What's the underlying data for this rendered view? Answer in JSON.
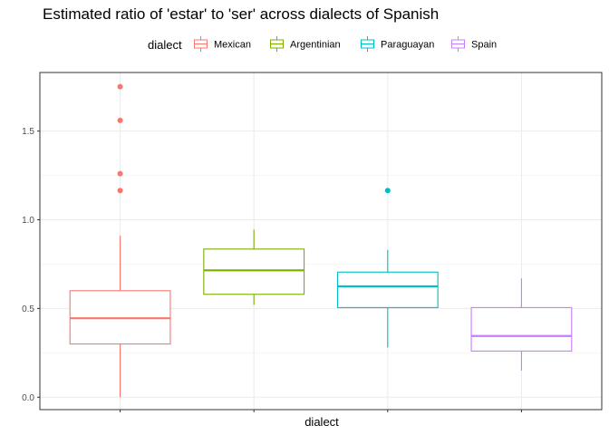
{
  "chart_data": {
    "type": "boxplot",
    "title": "Estimated ratio of 'estar' to 'ser' across dialects of Spanish",
    "xlabel": "dialect",
    "ylabel": "",
    "ylim": [
      -0.07,
      1.83
    ],
    "yticks": [
      0.0,
      0.5,
      1.0,
      1.5
    ],
    "ytick_labels": [
      "0.0",
      "0.5",
      "1.0",
      "1.5"
    ],
    "grid": true,
    "legend": {
      "title": "dialect",
      "position": "top",
      "entries": [
        "Mexican",
        "Argentinian",
        "Paraguayan",
        "Spain"
      ]
    },
    "series": [
      {
        "name": "Mexican",
        "color": "#F8766D",
        "whisker_low": 0.0,
        "q1": 0.3,
        "median": 0.445,
        "q3": 0.6,
        "whisker_high": 0.91,
        "outliers": [
          1.165,
          1.26,
          1.56,
          1.75
        ]
      },
      {
        "name": "Argentinian",
        "color": "#7CAE00",
        "whisker_low": 0.52,
        "q1": 0.58,
        "median": 0.715,
        "q3": 0.835,
        "whisker_high": 0.945,
        "outliers": []
      },
      {
        "name": "Paraguayan",
        "color": "#00BFC4",
        "whisker_low": 0.28,
        "q1": 0.505,
        "median": 0.625,
        "q3": 0.705,
        "whisker_high": 0.83,
        "outliers": [
          1.165
        ]
      },
      {
        "name": "Spain",
        "color": "#C77CFF",
        "whisker_low": 0.15,
        "q1": 0.26,
        "median": 0.345,
        "q3": 0.505,
        "whisker_high": 0.67,
        "outliers": []
      }
    ]
  }
}
